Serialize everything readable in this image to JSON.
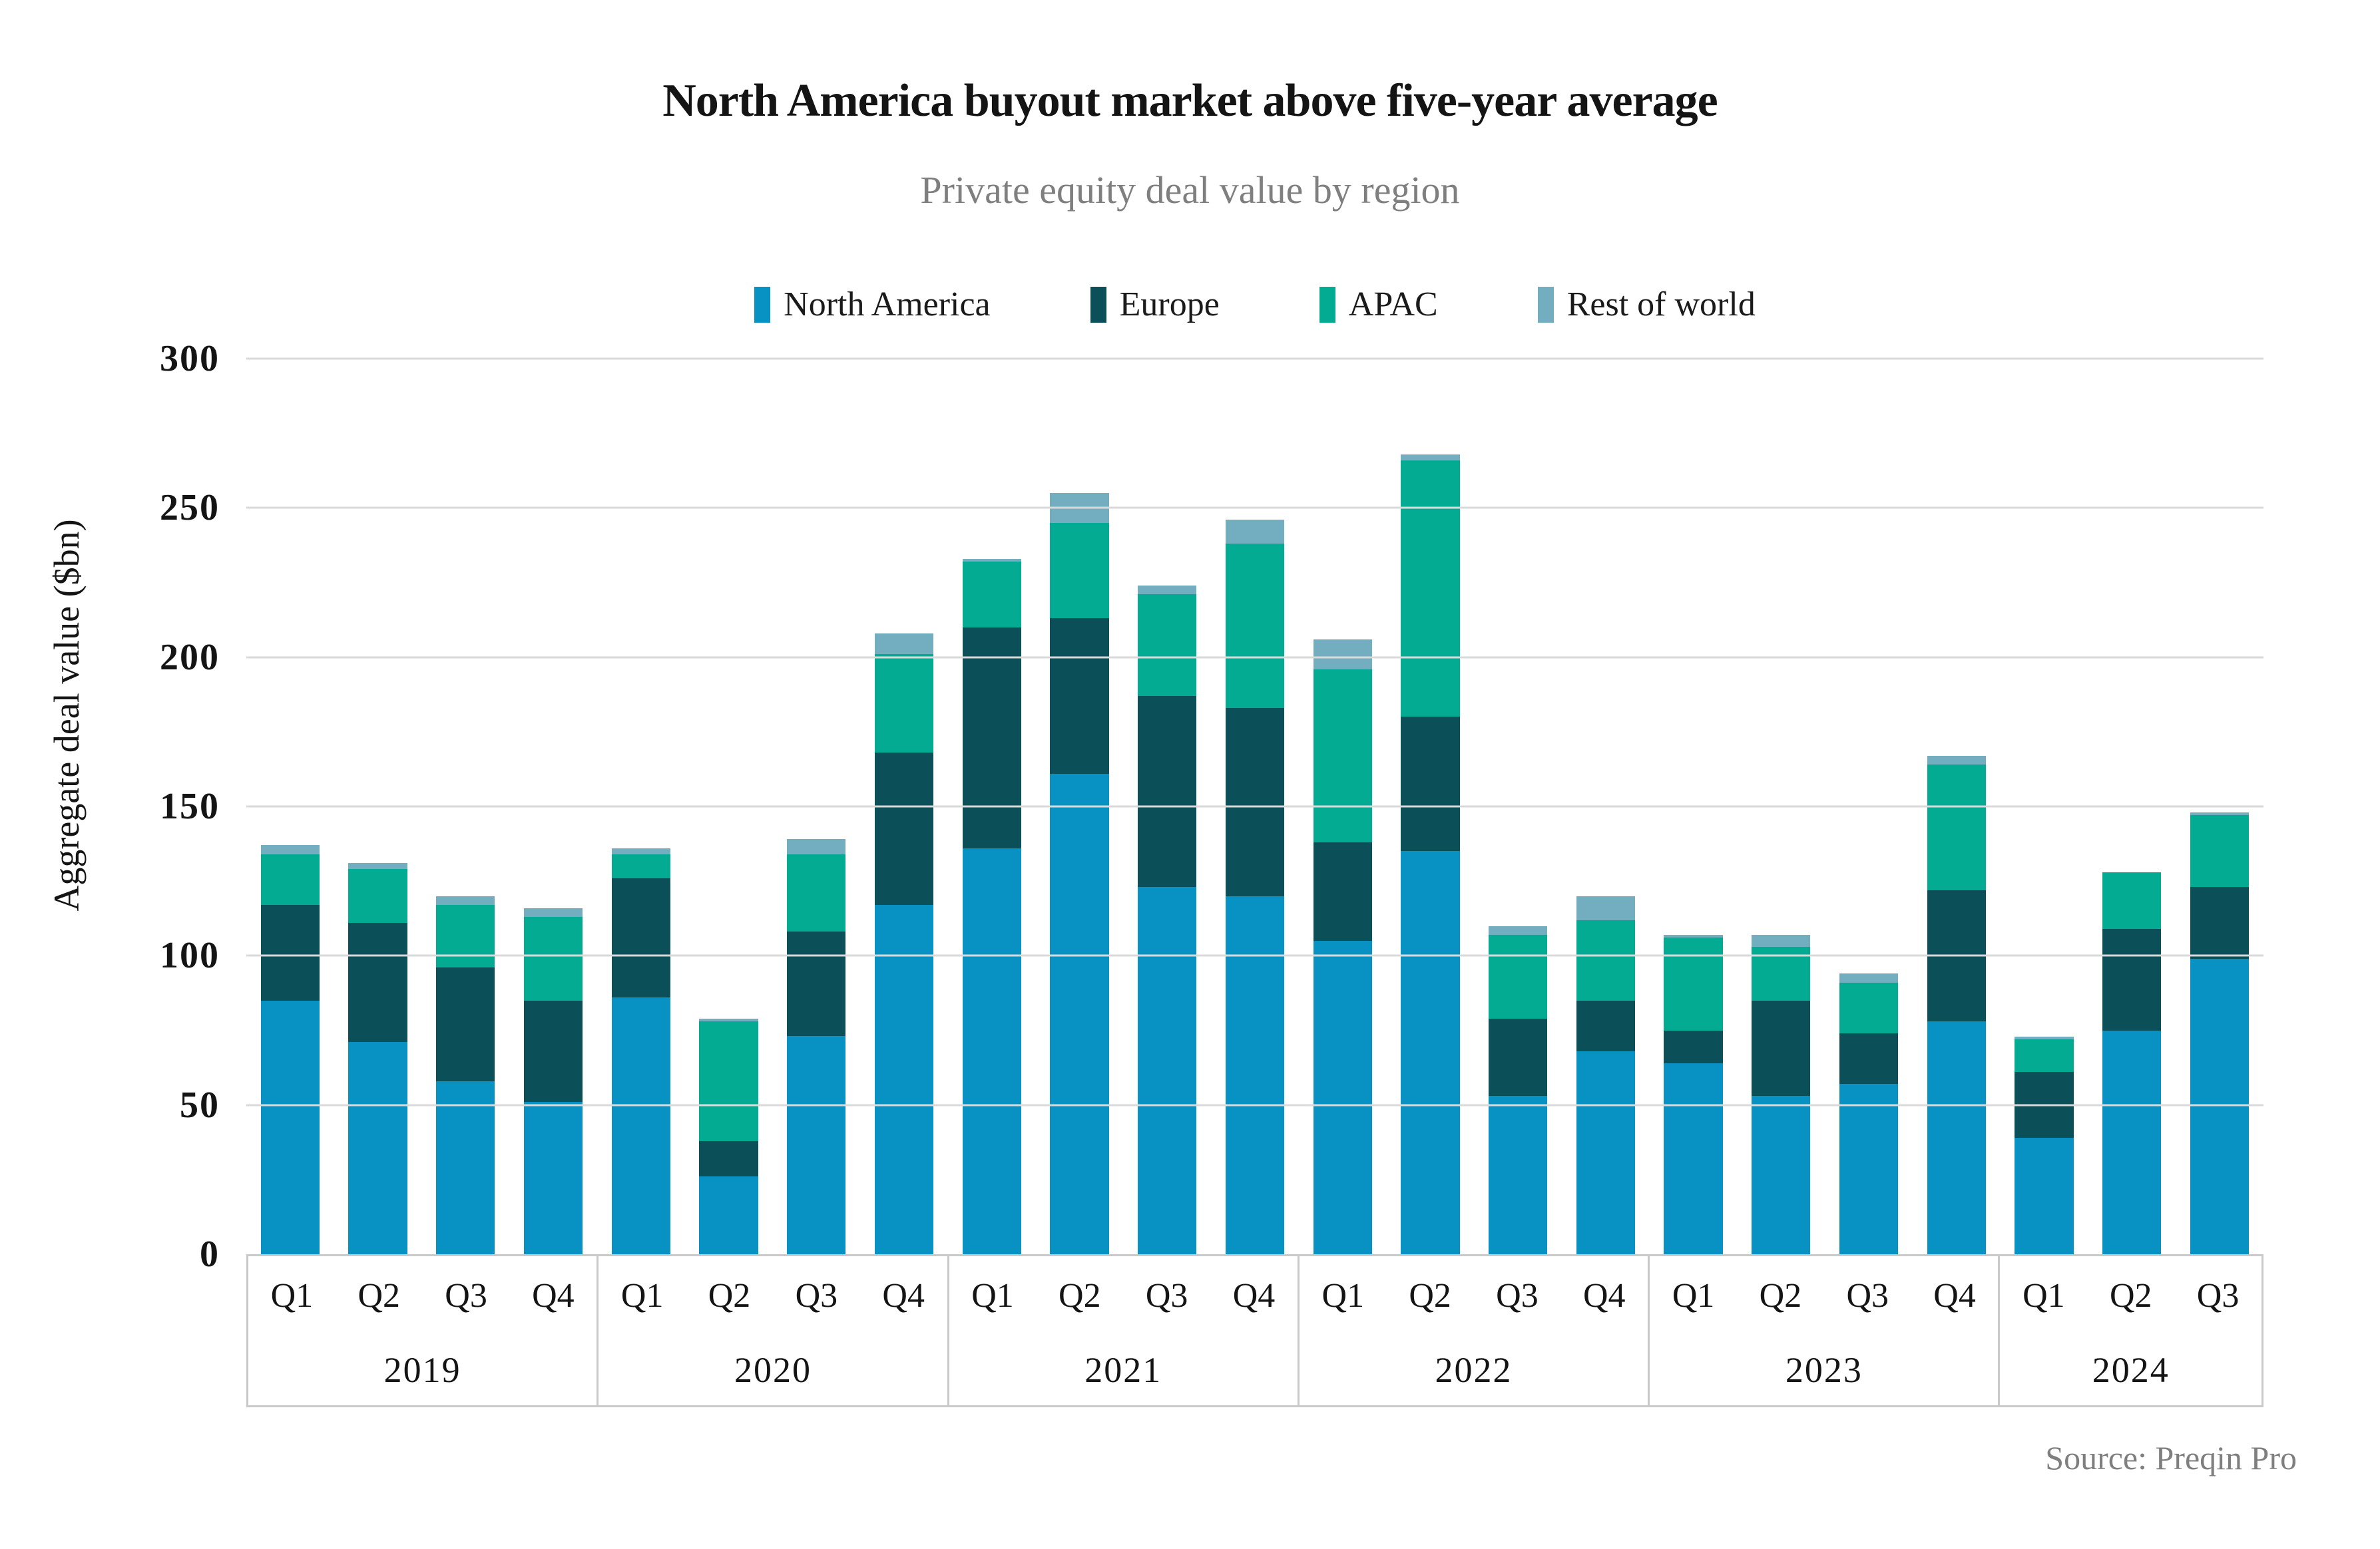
{
  "title": "North America buyout market above five-year average",
  "subtitle": "Private equity deal value by region",
  "source": "Source: Preqin Pro",
  "colors": {
    "north_america": "#0892c3",
    "europe": "#0b4f58",
    "apac": "#02ab92",
    "rest_of_world": "#72aebf",
    "gridline": "#d9d9d9",
    "axis_border": "#c9c9c9",
    "title_text": "#141414",
    "subtitle_text": "#7f7f7f"
  },
  "legend": [
    {
      "label": "North America",
      "color": "#0892c3"
    },
    {
      "label": "Europe",
      "color": "#0b4f58"
    },
    {
      "label": "APAC",
      "color": "#02ab92"
    },
    {
      "label": "Rest of world",
      "color": "#72aebf"
    }
  ],
  "chart_data": {
    "type": "bar",
    "stacked": true,
    "title": "North America buyout market above five-year average",
    "subtitle": "Private equity deal value by region",
    "xlabel": "",
    "ylabel": "Aggregate deal value ($bn)",
    "ylim": [
      0,
      300
    ],
    "yticks": [
      0,
      50,
      100,
      150,
      200,
      250,
      300
    ],
    "grid": true,
    "legend_position": "top",
    "groups": [
      {
        "year": "2019",
        "quarters": [
          "Q1",
          "Q2",
          "Q3",
          "Q4"
        ]
      },
      {
        "year": "2020",
        "quarters": [
          "Q1",
          "Q2",
          "Q3",
          "Q4"
        ]
      },
      {
        "year": "2021",
        "quarters": [
          "Q1",
          "Q2",
          "Q3",
          "Q4"
        ]
      },
      {
        "year": "2022",
        "quarters": [
          "Q1",
          "Q2",
          "Q3",
          "Q4"
        ]
      },
      {
        "year": "2023",
        "quarters": [
          "Q1",
          "Q2",
          "Q3",
          "Q4"
        ]
      },
      {
        "year": "2024",
        "quarters": [
          "Q1",
          "Q2",
          "Q3"
        ]
      }
    ],
    "categories": [
      "2019 Q1",
      "2019 Q2",
      "2019 Q3",
      "2019 Q4",
      "2020 Q1",
      "2020 Q2",
      "2020 Q3",
      "2020 Q4",
      "2021 Q1",
      "2021 Q2",
      "2021 Q3",
      "2021 Q4",
      "2022 Q1",
      "2022 Q2",
      "2022 Q3",
      "2022 Q4",
      "2023 Q1",
      "2023 Q2",
      "2023 Q3",
      "2023 Q4",
      "2024 Q1",
      "2024 Q2",
      "2024 Q3"
    ],
    "series": [
      {
        "name": "North America",
        "color": "#0892c3",
        "values": [
          85,
          71,
          58,
          51,
          86,
          26,
          73,
          117,
          136,
          161,
          123,
          120,
          105,
          135,
          53,
          68,
          64,
          53,
          57,
          78,
          39,
          75,
          99
        ]
      },
      {
        "name": "Europe",
        "color": "#0b4f58",
        "values": [
          32,
          40,
          38,
          34,
          40,
          12,
          35,
          51,
          74,
          52,
          64,
          63,
          33,
          45,
          26,
          17,
          11,
          32,
          17,
          44,
          22,
          34,
          24
        ]
      },
      {
        "name": "APAC",
        "color": "#02ab92",
        "values": [
          17,
          18,
          21,
          28,
          8,
          40,
          26,
          33,
          22,
          32,
          34,
          55,
          58,
          86,
          28,
          27,
          31,
          18,
          17,
          42,
          11,
          19,
          24
        ]
      },
      {
        "name": "Rest of world",
        "color": "#72aebf",
        "values": [
          3,
          2,
          3,
          3,
          2,
          1,
          5,
          7,
          1,
          10,
          3,
          8,
          10,
          2,
          3,
          8,
          1,
          4,
          3,
          3,
          1,
          0,
          1
        ]
      }
    ],
    "totals": [
      137,
      131,
      120,
      116,
      136,
      79,
      139,
      208,
      233,
      255,
      224,
      246,
      206,
      268,
      110,
      120,
      107,
      107,
      94,
      167,
      73,
      128,
      148
    ]
  }
}
